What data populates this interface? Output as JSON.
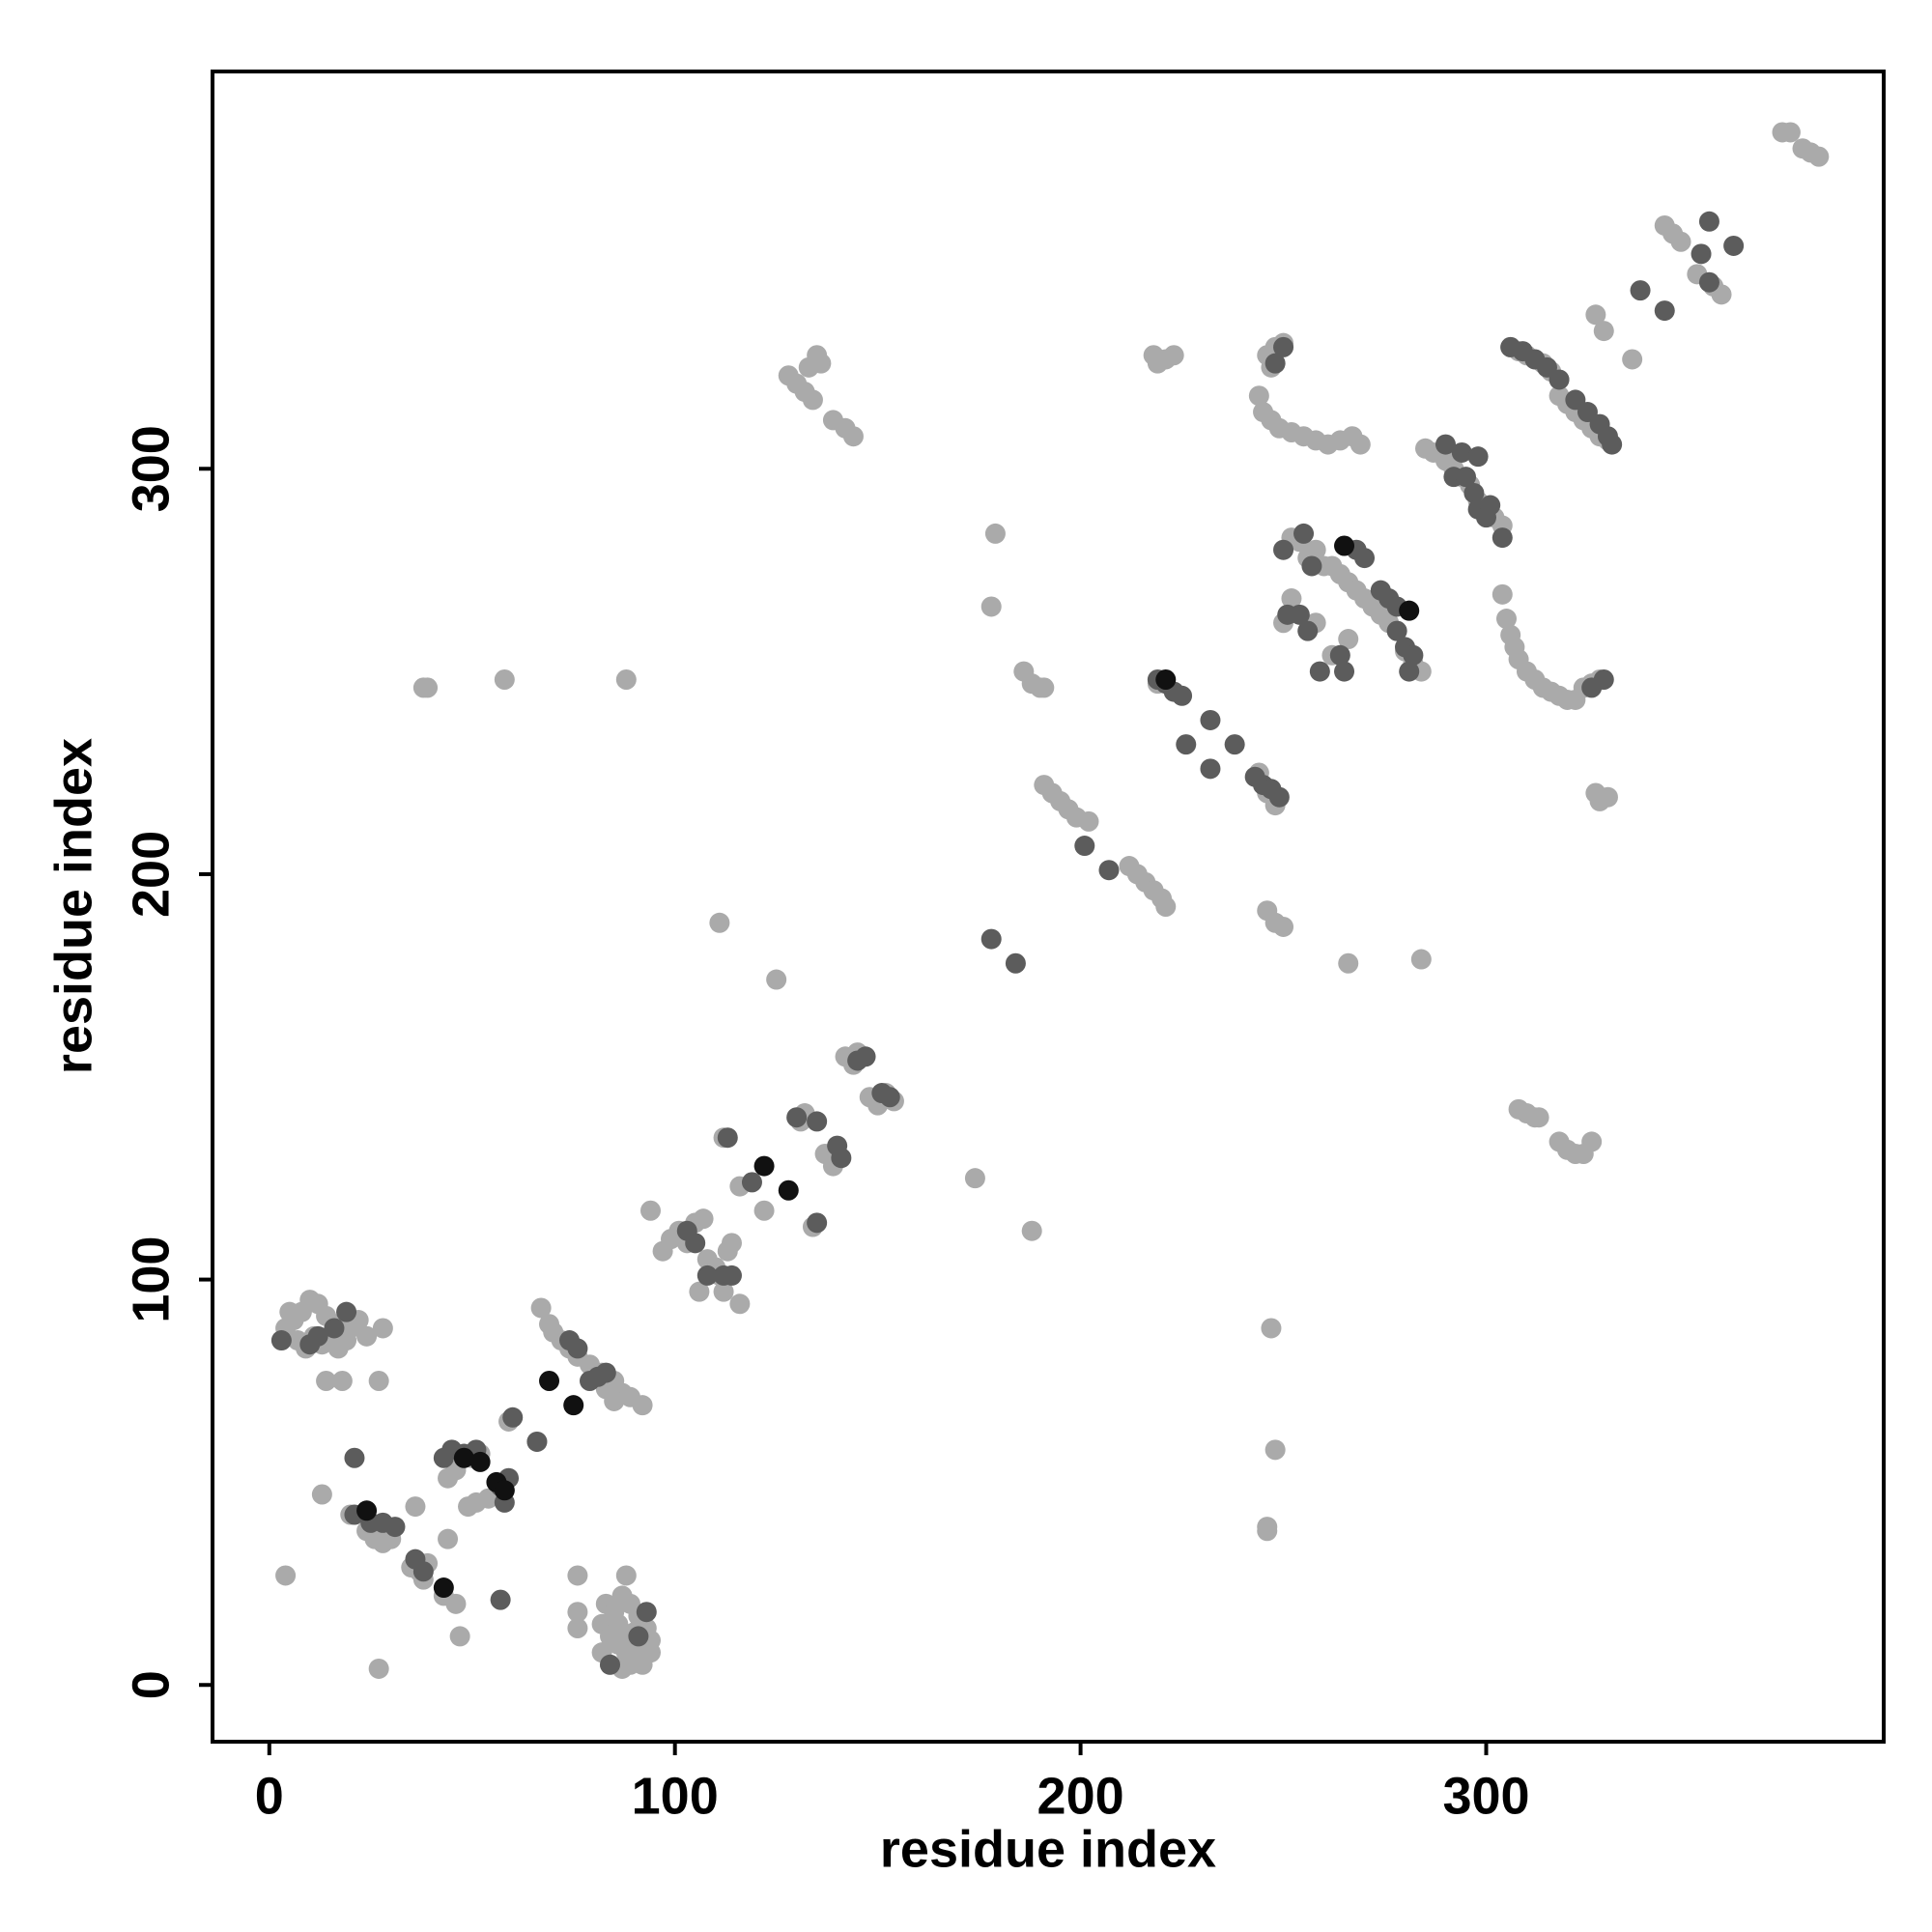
{
  "chart_data": {
    "type": "scatter",
    "xlabel": "residue index",
    "ylabel": "residue index",
    "xlim": [
      -14,
      398
    ],
    "ylim": [
      -14,
      398
    ],
    "xticks": [
      0,
      100,
      200,
      300
    ],
    "yticks": [
      0,
      100,
      200,
      300
    ],
    "series": [
      {
        "color": "#aaaaaa",
        "x": [
          4,
          6,
          8,
          10,
          12,
          14,
          16,
          18,
          20,
          22,
          7,
          9,
          11,
          13,
          15,
          17,
          19,
          5,
          24,
          14,
          18,
          27,
          28,
          4,
          13,
          27,
          20,
          24,
          26,
          28,
          30,
          36,
          37,
          38,
          35,
          39,
          43,
          46,
          47,
          44,
          44,
          46,
          50,
          52,
          49,
          51,
          54,
          58,
          59,
          66,
          67,
          69,
          70,
          72,
          74,
          76,
          79,
          82,
          85,
          87,
          89,
          92,
          83,
          85,
          76,
          76,
          76,
          88,
          82,
          84,
          86,
          88,
          90,
          92,
          94,
          83,
          85,
          87,
          89,
          91,
          93,
          82,
          84,
          86,
          88,
          90,
          92,
          94,
          87,
          89,
          38,
          39,
          58,
          88,
          94,
          97,
          99,
          101,
          103,
          105,
          107,
          108,
          110,
          111,
          113,
          114,
          112,
          106,
          112,
          116,
          116,
          122,
          125,
          111,
          131,
          132,
          134,
          137,
          139,
          142,
          144,
          145,
          148,
          150,
          152,
          154,
          174,
          188,
          178,
          179,
          128,
          130,
          132,
          134,
          136,
          135,
          133,
          139,
          142,
          144,
          186,
          188,
          190,
          191,
          191,
          193,
          195,
          197,
          199,
          202,
          212,
          214,
          216,
          218,
          220,
          221,
          218,
          219,
          221,
          223,
          219,
          244,
          246,
          248,
          246,
          248,
          250,
          247,
          248,
          246,
          246,
          266,
          284,
          246,
          248,
          250,
          247,
          244,
          245,
          247,
          249,
          252,
          255,
          258,
          261,
          264,
          267,
          269,
          250,
          252,
          254,
          256,
          258,
          260,
          262,
          264,
          266,
          268,
          270,
          272,
          274,
          276,
          278,
          280,
          282,
          284,
          258,
          262,
          266,
          252,
          285,
          287,
          290,
          292,
          294,
          296,
          298,
          300,
          302,
          304,
          305,
          306,
          307,
          308,
          310,
          312,
          314,
          316,
          318,
          320,
          322,
          324,
          326,
          328,
          304,
          327,
          328,
          330,
          308,
          310,
          312,
          313,
          318,
          320,
          322,
          324,
          326,
          306,
          308,
          310,
          312,
          314,
          316,
          318,
          320,
          322,
          324,
          326,
          328,
          330,
          327,
          329,
          336,
          344,
          346,
          348,
          352,
          356,
          358,
          373,
          375,
          378,
          380,
          382
        ],
        "y": [
          88,
          90,
          92,
          95,
          94,
          91,
          89,
          87,
          88,
          90,
          85,
          83,
          86,
          84,
          86,
          83,
          85,
          92,
          86,
          75,
          75,
          75,
          88,
          27,
          47,
          4,
          42,
          38,
          36,
          35,
          36,
          44,
          28,
          26,
          29,
          30,
          22,
          20,
          12,
          36,
          51,
          53,
          56,
          57,
          44,
          45,
          46,
          48,
          65,
          60,
          93,
          89,
          87,
          85,
          83,
          81,
          79,
          77,
          75,
          72,
          71,
          69,
          73,
          70,
          27,
          18,
          14,
          27,
          15,
          12,
          10,
          8,
          6,
          9,
          11,
          20,
          18,
          22,
          20,
          17,
          14,
          8,
          5,
          15,
          12,
          13,
          5,
          8,
          4,
          5,
          246,
          246,
          248,
          248,
          117,
          107,
          110,
          112,
          109,
          114,
          115,
          105,
          103,
          101,
          107,
          109,
          135,
          97,
          97,
          94,
          123,
          117,
          174,
          188,
          139,
          141,
          113,
          131,
          128,
          155,
          153,
          156,
          145,
          143,
          146,
          144,
          125,
          112,
          266,
          284,
          323,
          321,
          319,
          317,
          326,
          328,
          325,
          312,
          310,
          308,
          250,
          247,
          246,
          246,
          222,
          220,
          218,
          216,
          214,
          213,
          202,
          200,
          198,
          196,
          194,
          192,
          328,
          326,
          327,
          328,
          247,
          225,
          220,
          217,
          191,
          188,
          187,
          88,
          58,
          39,
          38,
          178,
          179,
          328,
          330,
          331,
          325,
          318,
          314,
          312,
          310,
          309,
          308,
          307,
          306,
          307,
          308,
          306,
          262,
          283,
          282,
          278,
          280,
          276,
          276,
          274,
          272,
          270,
          268,
          266,
          264,
          262,
          260,
          255,
          252,
          250,
          262,
          254,
          258,
          268,
          305,
          304,
          302,
          300,
          298,
          296,
          292,
          290,
          288,
          286,
          263,
          259,
          256,
          253,
          250,
          248,
          246,
          245,
          244,
          243,
          243,
          246,
          247,
          248,
          269,
          220,
          218,
          219,
          142,
          141,
          140,
          140,
          134,
          132,
          131,
          131,
          134,
          330,
          329,
          328,
          327,
          326,
          324,
          318,
          316,
          314,
          312,
          310,
          308,
          307,
          338,
          334,
          327,
          360,
          358,
          356,
          348,
          345,
          343,
          383,
          383,
          379,
          378,
          377
        ]
      },
      {
        "color": "#5c5c5c",
        "x": [
          3,
          19,
          16,
          12,
          10,
          21,
          21,
          25,
          28,
          31,
          36,
          38,
          57,
          43,
          45,
          48,
          51,
          57,
          58,
          59,
          60,
          66,
          74,
          76,
          79,
          81,
          83,
          84,
          93,
          91,
          103,
          105,
          108,
          112,
          114,
          113,
          119,
          130,
          135,
          140,
          141,
          135,
          145,
          147,
          151,
          153,
          178,
          184,
          201,
          207,
          219,
          221,
          223,
          225,
          232,
          226,
          238,
          232,
          243,
          245,
          247,
          249,
          250,
          248,
          250,
          251,
          254,
          256,
          255,
          257,
          264,
          265,
          259,
          268,
          270,
          274,
          276,
          278,
          278,
          280,
          282,
          281,
          290,
          294,
          292,
          295,
          297,
          298,
          300,
          298,
          301,
          304,
          329,
          326,
          306,
          309,
          312,
          315,
          318,
          322,
          325,
          328,
          330,
          331,
          338,
          344,
          355,
          361,
          355,
          353
        ],
        "y": [
          85,
          92,
          88,
          86,
          84,
          56,
          42,
          40,
          40,
          39,
          31,
          28,
          21,
          56,
          58,
          57,
          58,
          49,
          45,
          51,
          66,
          60,
          85,
          83,
          75,
          76,
          77,
          5,
          18,
          12,
          112,
          109,
          101,
          101,
          101,
          135,
          124,
          140,
          139,
          133,
          130,
          114,
          154,
          155,
          146,
          145,
          184,
          178,
          207,
          201,
          248,
          247,
          245,
          244,
          238,
          232,
          232,
          226,
          224,
          222,
          221,
          219,
          330,
          326,
          280,
          264,
          264,
          260,
          284,
          276,
          254,
          250,
          250,
          280,
          278,
          270,
          268,
          266,
          260,
          256,
          254,
          250,
          306,
          304,
          298,
          298,
          294,
          290,
          288,
          303,
          291,
          283,
          248,
          246,
          330,
          329,
          327,
          325,
          322,
          317,
          314,
          311,
          308,
          306,
          344,
          339,
          361,
          355,
          346,
          353
        ]
      },
      {
        "color": "#111111",
        "x": [
          24,
          43,
          48,
          52,
          56,
          58,
          69,
          75,
          122,
          128,
          221,
          265,
          281
        ],
        "y": [
          43,
          24,
          56,
          55,
          50,
          48,
          75,
          69,
          128,
          122,
          248,
          281,
          265
        ]
      }
    ]
  }
}
